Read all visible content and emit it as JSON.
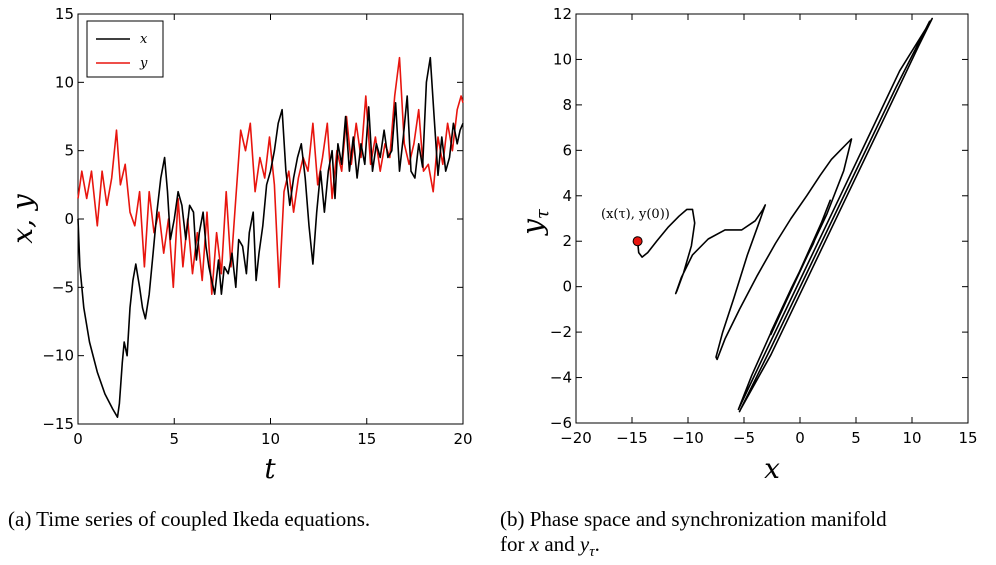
{
  "chart_data": [
    {
      "type": "line",
      "panel": "a",
      "xlabel": "t",
      "ylabel": "x, y",
      "xlim": [
        0,
        20
      ],
      "ylim": [
        -15,
        15
      ],
      "xticks": [
        "0",
        "5",
        "10",
        "15",
        "20"
      ],
      "yticks": [
        "−15",
        "−10",
        "−5",
        "0",
        "5",
        "10",
        "15"
      ],
      "legend_position": "top-left",
      "series": [
        {
          "name": "x",
          "color": "#000000",
          "x": [
            0,
            0.1,
            0.3,
            0.6,
            1.0,
            1.4,
            1.8,
            2.05,
            2.15,
            2.3,
            2.4,
            2.55,
            2.7,
            2.85,
            3.0,
            3.2,
            3.35,
            3.5,
            3.7,
            3.9,
            4.1,
            4.3,
            4.5,
            4.65,
            4.8,
            5.0,
            5.2,
            5.4,
            5.6,
            5.8,
            6.0,
            6.15,
            6.3,
            6.5,
            6.65,
            6.8,
            6.95,
            7.1,
            7.3,
            7.45,
            7.6,
            7.8,
            8.0,
            8.2,
            8.35,
            8.55,
            8.75,
            8.9,
            9.1,
            9.25,
            9.4,
            9.6,
            9.8,
            10.0,
            10.2,
            10.4,
            10.6,
            10.8,
            11.0,
            11.2,
            11.4,
            11.6,
            11.8,
            12.0,
            12.2,
            12.4,
            12.6,
            12.8,
            13.0,
            13.2,
            13.35,
            13.5,
            13.7,
            13.9,
            14.1,
            14.3,
            14.5,
            14.7,
            14.9,
            15.1,
            15.3,
            15.5,
            15.7,
            15.9,
            16.1,
            16.3,
            16.5,
            16.7,
            16.9,
            17.1,
            17.3,
            17.5,
            17.7,
            17.9,
            18.1,
            18.3,
            18.5,
            18.7,
            18.9,
            19.1,
            19.3,
            19.5,
            19.7,
            19.85,
            20.0
          ],
          "y": [
            0,
            -3.5,
            -6.5,
            -9.0,
            -11.2,
            -12.8,
            -13.9,
            -14.5,
            -13.5,
            -10.5,
            -9.0,
            -10.0,
            -6.5,
            -4.5,
            -3.3,
            -5.0,
            -6.5,
            -7.3,
            -5.5,
            -2.5,
            0.5,
            3.0,
            4.5,
            2.0,
            -1.5,
            0.0,
            2.0,
            1.0,
            -1.5,
            1.0,
            0.5,
            -3.0,
            -1.0,
            0.5,
            -2.0,
            -3.5,
            -4.5,
            -5.5,
            -3.0,
            -5.5,
            -3.5,
            -4.0,
            -2.5,
            -5.0,
            -1.5,
            -2.0,
            -4.0,
            -1.0,
            0.5,
            -4.5,
            -2.5,
            -0.5,
            2.5,
            3.5,
            5.0,
            7.0,
            8.0,
            3.5,
            1.0,
            3.0,
            4.5,
            5.5,
            3.0,
            -0.5,
            -3.3,
            0.5,
            3.5,
            0.5,
            3.5,
            5.0,
            1.5,
            5.5,
            4.0,
            7.5,
            3.5,
            6.0,
            3.0,
            5.5,
            4.0,
            8.2,
            3.5,
            5.5,
            4.5,
            6.5,
            4.5,
            5.0,
            8.5,
            3.5,
            6.0,
            9.0,
            3.5,
            3.0,
            5.5,
            3.8,
            10.0,
            11.8,
            7.5,
            3.2,
            6.0,
            3.5,
            4.5,
            7.0,
            5.5,
            6.5,
            7.0
          ]
        },
        {
          "name": "y",
          "color": "#e8150e",
          "x": [
            0,
            0.2,
            0.45,
            0.7,
            1.0,
            1.25,
            1.5,
            1.75,
            2.0,
            2.2,
            2.45,
            2.7,
            2.95,
            3.2,
            3.45,
            3.7,
            3.95,
            4.2,
            4.45,
            4.7,
            4.95,
            5.2,
            5.45,
            5.7,
            5.95,
            6.2,
            6.45,
            6.7,
            6.95,
            7.2,
            7.45,
            7.7,
            7.95,
            8.2,
            8.45,
            8.7,
            8.95,
            9.2,
            9.45,
            9.7,
            9.95,
            10.2,
            10.45,
            10.7,
            10.95,
            11.2,
            11.45,
            11.7,
            11.95,
            12.2,
            12.45,
            12.7,
            12.95,
            13.2,
            13.45,
            13.7,
            13.95,
            14.2,
            14.45,
            14.7,
            14.95,
            15.2,
            15.45,
            15.7,
            15.95,
            16.2,
            16.45,
            16.7,
            16.95,
            17.2,
            17.45,
            17.7,
            17.95,
            18.2,
            18.45,
            18.7,
            18.95,
            19.2,
            19.45,
            19.7,
            19.9,
            20.0
          ],
          "y": [
            1.5,
            3.5,
            1.5,
            3.5,
            -0.5,
            3.5,
            1.0,
            3.0,
            6.5,
            2.5,
            4.0,
            0.5,
            -0.5,
            2.0,
            -3.5,
            2.0,
            -1.0,
            0.5,
            -2.5,
            0.0,
            -5.0,
            1.5,
            -3.5,
            0.0,
            -4.0,
            -1.0,
            -4.5,
            0.5,
            -5.5,
            -1.0,
            -4.0,
            2.0,
            -3.5,
            1.5,
            6.5,
            5.0,
            7.0,
            2.0,
            4.5,
            3.0,
            6.0,
            2.5,
            -5.0,
            2.0,
            3.5,
            0.5,
            3.0,
            4.5,
            3.5,
            7.0,
            2.5,
            4.5,
            7.0,
            1.5,
            5.0,
            3.5,
            7.5,
            4.0,
            7.0,
            4.5,
            9.0,
            4.0,
            6.0,
            3.5,
            5.5,
            4.5,
            9.0,
            11.8,
            5.5,
            4.0,
            5.5,
            8.0,
            3.5,
            4.0,
            2.0,
            6.0,
            4.0,
            7.0,
            5.0,
            8.0,
            9.0,
            8.5
          ]
        }
      ]
    },
    {
      "type": "line",
      "panel": "b",
      "xlabel": "x",
      "ylabel": "y_τ",
      "xlim": [
        -20,
        15
      ],
      "ylim": [
        -6,
        12
      ],
      "xticks": [
        "−20",
        "−15",
        "−10",
        "−5",
        "0",
        "5",
        "10",
        "15"
      ],
      "yticks": [
        "−6",
        "−4",
        "−2",
        "0",
        "2",
        "4",
        "6",
        "8",
        "10",
        "12"
      ],
      "annotation": "(x(τ), y(0))",
      "start_point": {
        "x": -14.5,
        "y": 2.0,
        "color": "#e8150e"
      },
      "x": [
        -14.5,
        -14.4,
        -14.1,
        -13.6,
        -12.8,
        -11.8,
        -10.8,
        -10.1,
        -9.6,
        -9.4,
        -9.7,
        -10.4,
        -11.0,
        -11.1,
        -10.6,
        -9.6,
        -8.2,
        -6.7,
        -5.2,
        -4.0,
        -3.3,
        -3.1,
        -3.6,
        -4.7,
        -5.9,
        -6.9,
        -7.5,
        -7.4,
        -6.7,
        -5.4,
        -3.8,
        -2.2,
        -0.8,
        0.6,
        1.8,
        2.8,
        3.6,
        4.2,
        4.6,
        3.9,
        2.4,
        0.6,
        -1.2,
        -2.6,
        -2.6,
        -0.8,
        1.2,
        2.7,
        1.9,
        -0.1,
        -2.3,
        -4.3,
        -5.5,
        -5.3,
        -3.0,
        0.3,
        3.6,
        6.4,
        8.9,
        11.8,
        10.6,
        7.6,
        4.2,
        0.8,
        -2.6,
        -5.3,
        -5.4,
        -2.6,
        1.0,
        4.7,
        8.6,
        11.6
      ],
      "y": [
        2.0,
        1.5,
        1.3,
        1.5,
        2.0,
        2.6,
        3.1,
        3.4,
        3.4,
        2.8,
        1.8,
        0.6,
        -0.2,
        -0.3,
        0.4,
        1.4,
        2.1,
        2.5,
        2.5,
        2.9,
        3.4,
        3.6,
        2.9,
        1.4,
        -0.5,
        -2.0,
        -3.1,
        -3.2,
        -2.3,
        -1.0,
        0.5,
        1.9,
        3.0,
        4.0,
        4.9,
        5.6,
        6.0,
        6.3,
        6.5,
        5.1,
        3.2,
        1.3,
        -0.6,
        -2.1,
        -2.0,
        -0.1,
        1.9,
        3.8,
        2.8,
        0.6,
        -1.7,
        -3.9,
        -5.4,
        -5.2,
        -2.8,
        0.6,
        4.0,
        6.9,
        9.5,
        11.8,
        10.6,
        7.5,
        4.0,
        0.5,
        -3.0,
        -5.4,
        -5.5,
        -2.7,
        1.0,
        4.8,
        8.8,
        11.7
      ]
    }
  ],
  "captions": {
    "a": "(a) Time series of coupled Ikeda equations.",
    "b_line1": "(b) Phase space and synchronization manifold",
    "b_line2_pre": "for ",
    "b_line2_x": "x",
    "b_line2_mid": " and ",
    "b_line2_y": "y",
    "b_line2_sub": "τ",
    "b_line2_post": "."
  }
}
